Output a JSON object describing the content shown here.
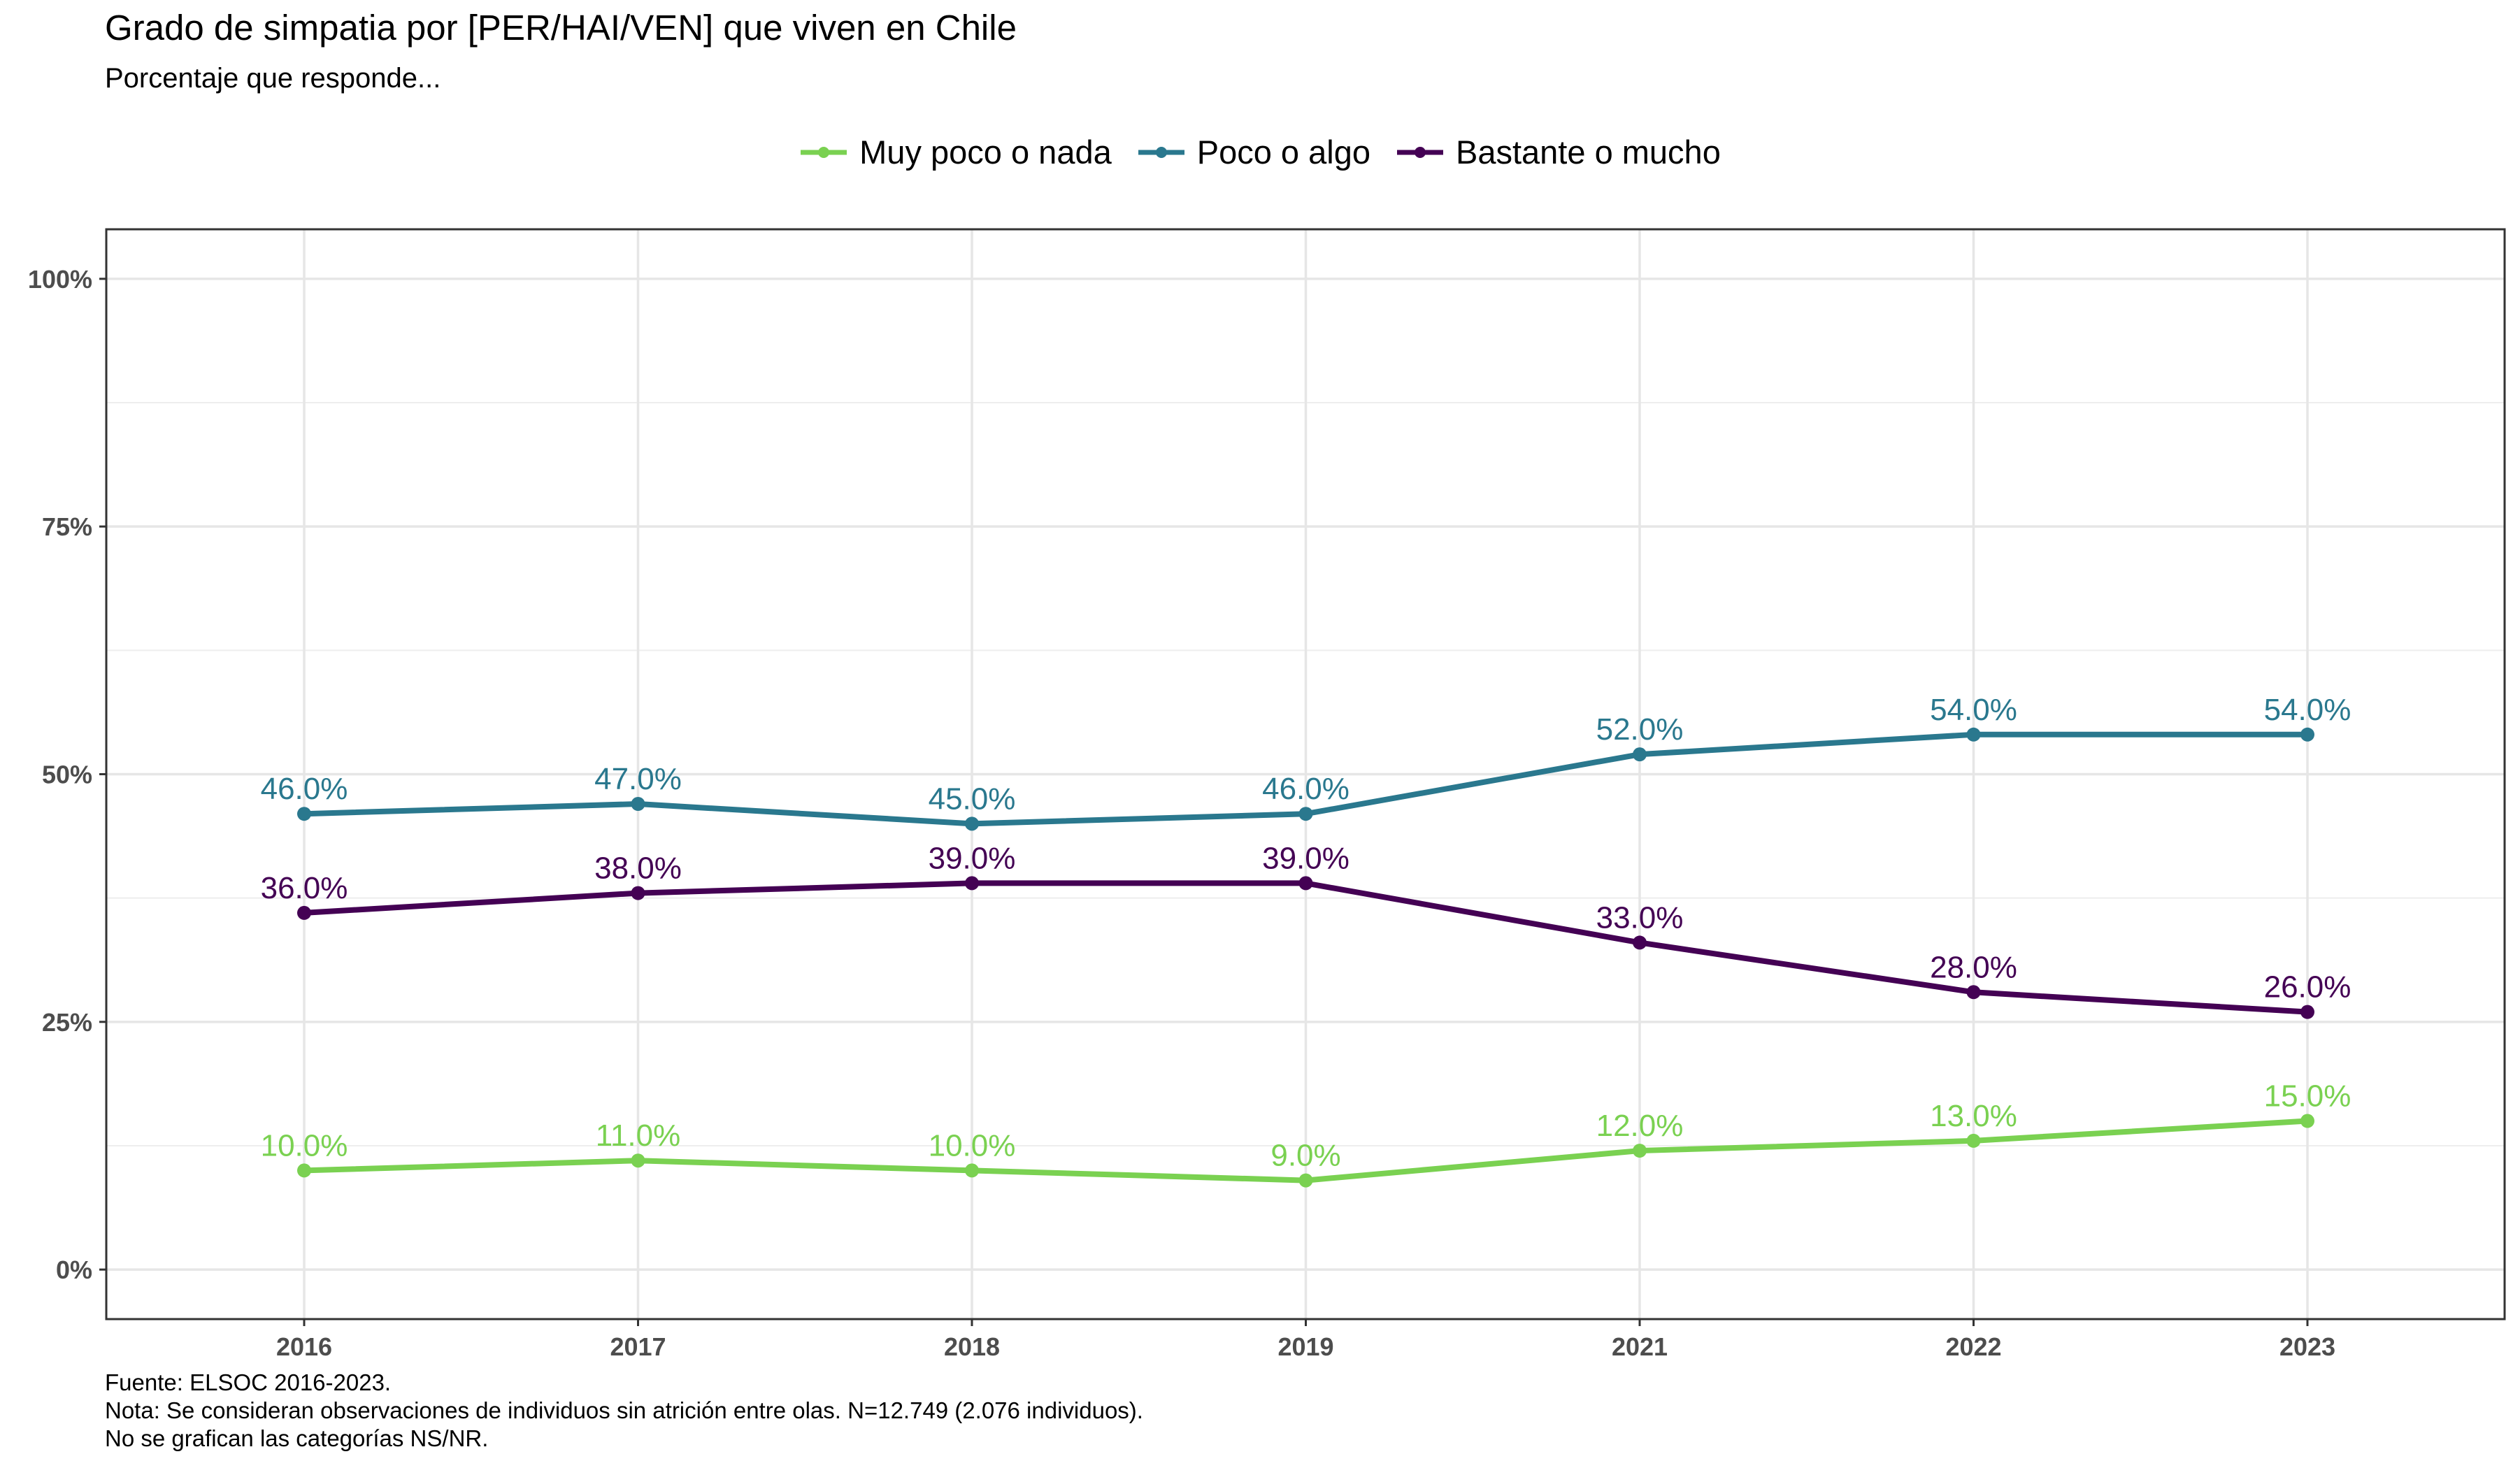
{
  "title": "Grado de simpatia por [PER/HAI/VEN] que viven en Chile",
  "subtitle": "Porcentaje que responde...",
  "caption": [
    "Fuente: ELSOC 2016-2023.",
    "Nota: Se consideran observaciones de individuos sin atrición entre olas. N=12.749 (2.076 individuos).",
    "No se grafican las categorías NS/NR."
  ],
  "chart_data": {
    "type": "line",
    "categories": [
      "2016",
      "2017",
      "2018",
      "2019",
      "2021",
      "2022",
      "2023"
    ],
    "series": [
      {
        "name": "Muy poco o nada",
        "color": "#7AD151",
        "values": [
          10.0,
          11.0,
          10.0,
          9.0,
          12.0,
          13.0,
          15.0
        ]
      },
      {
        "name": "Poco o algo",
        "color": "#2A788E",
        "values": [
          46.0,
          47.0,
          45.0,
          46.0,
          52.0,
          54.0,
          54.0
        ]
      },
      {
        "name": "Bastante o mucho",
        "color": "#440154",
        "values": [
          36.0,
          38.0,
          39.0,
          39.0,
          33.0,
          28.0,
          26.0
        ]
      }
    ],
    "y_ticks": [
      "0%",
      "25%",
      "50%",
      "75%",
      "100%"
    ],
    "ylim": [
      -5,
      105
    ],
    "grid": true,
    "legend_position": "top",
    "data_label_format": "one-decimal percent"
  }
}
